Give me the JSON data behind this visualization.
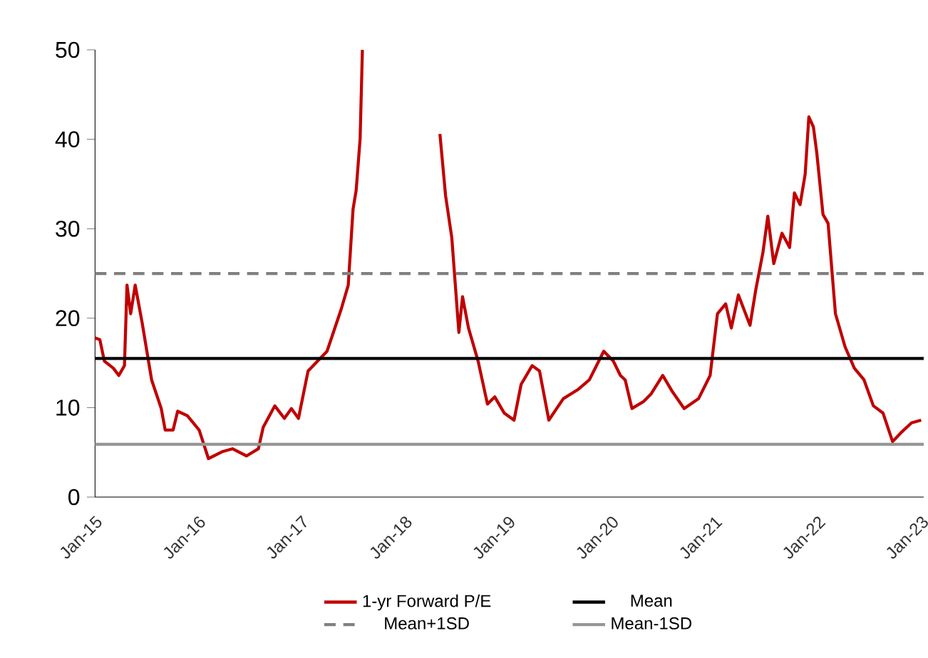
{
  "chart_data": {
    "type": "line",
    "xlim": [
      "2015-01-01",
      "2023-01-10"
    ],
    "xticks": [
      {
        "value": "2015-01-01",
        "label": "Jan-15"
      },
      {
        "value": "2016-01-01",
        "label": "Jan-16"
      },
      {
        "value": "2017-01-01",
        "label": "Jan-17"
      },
      {
        "value": "2018-01-01",
        "label": "Jan-18"
      },
      {
        "value": "2019-01-01",
        "label": "Jan-19"
      },
      {
        "value": "2020-01-01",
        "label": "Jan-20"
      },
      {
        "value": "2021-01-01",
        "label": "Jan-21"
      },
      {
        "value": "2022-01-01",
        "label": "Jan-22"
      },
      {
        "value": "2023-01-01",
        "label": "Jan-23"
      }
    ],
    "ylim": [
      0,
      50
    ],
    "yticks": [
      0,
      10,
      20,
      30,
      40,
      50
    ],
    "grid": false,
    "legend": "bottom",
    "marker": "none",
    "series": [
      {
        "name": "1-yr Forward P/E",
        "color": "#c00000",
        "line_style": "solid",
        "x": [
          "2015-01-01",
          "2015-01-18",
          "2015-02-03",
          "2015-03-07",
          "2015-03-26",
          "2015-04-15",
          "2015-04-24",
          "2015-05-07",
          "2015-05-23",
          "2015-06-17",
          "2015-07-20",
          "2015-08-23",
          "2015-09-06",
          "2015-10-04",
          "2015-10-20",
          "2015-11-23",
          "2016-01-04",
          "2016-02-06",
          "2016-03-28",
          "2016-05-01",
          "2016-06-20",
          "2016-08-01",
          "2016-08-18",
          "2016-09-28",
          "2016-11-01",
          "2016-11-26",
          "2016-12-21",
          "2017-01-24",
          "2017-04-01",
          "2017-05-21",
          "2017-06-15",
          "2017-07-02",
          "2017-07-13",
          "2017-07-27",
          "2017-08-04",
          "2018-01-01",
          "2018-05-05",
          "2018-05-25",
          "2018-06-16",
          "2018-07-11",
          "2018-07-24",
          "2018-08-14",
          "2018-09-17",
          "2018-10-20",
          "2018-11-15",
          "2018-12-18",
          "2019-01-22",
          "2019-02-16",
          "2019-03-27",
          "2019-04-22",
          "2019-05-25",
          "2019-07-15",
          "2019-09-04",
          "2019-10-15",
          "2019-12-05",
          "2020-01-08",
          "2020-02-02",
          "2020-02-19",
          "2020-03-14",
          "2020-04-25",
          "2020-05-20",
          "2020-07-01",
          "2020-08-04",
          "2020-09-15",
          "2020-11-05",
          "2020-12-16",
          "2021-01-11",
          "2021-02-09",
          "2021-03-01",
          "2021-03-26",
          "2021-05-06",
          "2021-05-26",
          "2021-06-21",
          "2021-07-08",
          "2021-07-29",
          "2021-08-27",
          "2021-09-23",
          "2021-10-10",
          "2021-10-30",
          "2021-11-17",
          "2021-11-30",
          "2021-12-16",
          "2021-12-28",
          "2022-01-19",
          "2022-02-06",
          "2022-03-04",
          "2022-04-07",
          "2022-05-10",
          "2022-06-13",
          "2022-07-16",
          "2022-08-19",
          "2022-09-22",
          "2022-10-25",
          "2022-11-28",
          "2023-01-01"
        ],
        "values": [
          17.8,
          17.6,
          15.2,
          14.4,
          13.6,
          14.7,
          23.7,
          20.5,
          23.7,
          19.4,
          13.1,
          9.9,
          7.5,
          7.5,
          9.6,
          9.1,
          7.5,
          4.3,
          5.1,
          5.4,
          4.6,
          5.4,
          7.8,
          10.2,
          8.8,
          9.9,
          8.8,
          14.1,
          16.3,
          21.0,
          23.7,
          32.2,
          34.3,
          40.1,
          50,
          null,
          40.6,
          33.7,
          29.0,
          18.4,
          22.4,
          18.9,
          15.2,
          10.4,
          11.2,
          9.4,
          8.6,
          12.6,
          14.7,
          14.1,
          8.6,
          11.0,
          12.0,
          13.1,
          16.3,
          15.2,
          13.6,
          13.1,
          9.9,
          10.7,
          11.5,
          13.6,
          11.8,
          9.9,
          11.0,
          13.6,
          20.5,
          21.6,
          18.9,
          22.6,
          19.2,
          23.1,
          27.4,
          31.4,
          26.1,
          29.5,
          27.9,
          34.0,
          32.7,
          36.1,
          42.5,
          41.4,
          38.5,
          31.6,
          30.6,
          20.5,
          16.8,
          14.4,
          13.1,
          10.2,
          9.4,
          6.2,
          7.3,
          8.3,
          8.6
        ]
      },
      {
        "name": "Mean",
        "color": "#000000",
        "line_style": "solid",
        "x": [
          "2015-01-01",
          "2023-01-10"
        ],
        "values": [
          15.5,
          15.5
        ]
      },
      {
        "name": "Mean+1SD",
        "color": "#808080",
        "line_style": "dashed",
        "x": [
          "2015-01-01",
          "2023-01-10"
        ],
        "values": [
          25.0,
          25.0
        ]
      },
      {
        "name": "Mean-1SD",
        "color": "#969696",
        "line_style": "solid",
        "x": [
          "2015-01-01",
          "2023-01-10"
        ],
        "values": [
          5.9,
          5.9
        ]
      }
    ]
  }
}
